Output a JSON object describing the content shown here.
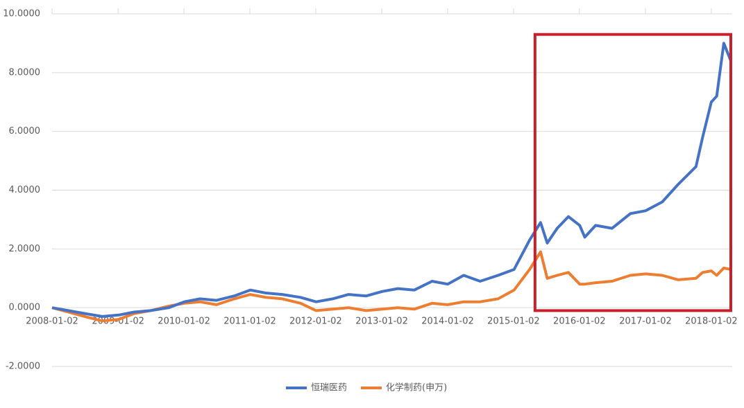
{
  "chart_data": {
    "type": "line",
    "x": [
      "2008-01-02",
      "2008-04-01",
      "2008-07-01",
      "2008-10-06",
      "2009-01-05",
      "2009-04-01",
      "2009-07-01",
      "2009-10-09",
      "2010-01-04",
      "2010-04-01",
      "2010-07-01",
      "2010-10-08",
      "2011-01-04",
      "2011-04-01",
      "2011-07-01",
      "2011-10-10",
      "2012-01-04",
      "2012-04-05",
      "2012-07-02",
      "2012-10-08",
      "2013-01-04",
      "2013-04-01",
      "2013-07-01",
      "2013-10-08",
      "2014-01-02",
      "2014-04-01",
      "2014-07-01",
      "2014-10-08",
      "2015-01-05",
      "2015-04-01",
      "2015-06-01",
      "2015-07-08",
      "2015-09-01",
      "2015-11-02",
      "2016-01-04",
      "2016-02-01",
      "2016-04-01",
      "2016-07-01",
      "2016-10-10",
      "2017-01-03",
      "2017-04-05",
      "2017-07-03",
      "2017-10-09",
      "2017-11-15",
      "2018-01-02",
      "2018-02-01",
      "2018-03-12",
      "2018-04-20"
    ],
    "series": [
      {
        "name": "恒瑞医药",
        "color": "#4472c4",
        "values": [
          0,
          -0.1,
          -0.2,
          -0.3,
          -0.25,
          -0.15,
          -0.1,
          0.0,
          0.2,
          0.3,
          0.25,
          0.4,
          0.6,
          0.5,
          0.45,
          0.35,
          0.2,
          0.3,
          0.45,
          0.4,
          0.55,
          0.65,
          0.6,
          0.9,
          0.8,
          1.1,
          0.9,
          1.1,
          1.3,
          2.3,
          2.9,
          2.2,
          2.7,
          3.1,
          2.8,
          2.4,
          2.8,
          2.7,
          3.2,
          3.3,
          3.6,
          4.2,
          4.8,
          5.8,
          7.0,
          7.2,
          9.0,
          8.4
        ]
      },
      {
        "name": "化学制药(申万)",
        "color": "#ed7d31",
        "values": [
          0,
          -0.15,
          -0.3,
          -0.45,
          -0.4,
          -0.2,
          -0.1,
          0.05,
          0.15,
          0.2,
          0.1,
          0.3,
          0.45,
          0.35,
          0.3,
          0.15,
          -0.1,
          -0.05,
          0.0,
          -0.1,
          -0.05,
          0.0,
          -0.05,
          0.15,
          0.1,
          0.2,
          0.2,
          0.3,
          0.6,
          1.3,
          1.9,
          1.0,
          1.1,
          1.2,
          0.8,
          0.8,
          0.85,
          0.9,
          1.1,
          1.15,
          1.1,
          0.95,
          1.0,
          1.2,
          1.25,
          1.1,
          1.35,
          1.3
        ]
      }
    ],
    "xlim": [
      "2008-01-02",
      "2018-04-20"
    ],
    "xticks": [
      "2008-01-02",
      "2009-01-02",
      "2010-01-02",
      "2011-01-02",
      "2012-01-02",
      "2013-01-02",
      "2014-01-02",
      "2015-01-02",
      "2016-01-02",
      "2017-01-02",
      "2018-01-02"
    ],
    "ylim": [
      -2,
      10
    ],
    "yticks": [
      {
        "value": -2,
        "label": "-2.0000"
      },
      {
        "value": 0,
        "label": "0.0000"
      },
      {
        "value": 2,
        "label": "2.0000"
      },
      {
        "value": 4,
        "label": "4.0000"
      },
      {
        "value": 6,
        "label": "6.0000"
      },
      {
        "value": 8,
        "label": "8.0000"
      },
      {
        "value": 10,
        "label": "10.0000"
      }
    ],
    "grid": true,
    "legend": "bottom",
    "highlight": {
      "x": [
        "2015-05-01",
        "2018-04-20"
      ],
      "y": [
        -0.1,
        9.3
      ],
      "color": "#c8202b"
    }
  }
}
